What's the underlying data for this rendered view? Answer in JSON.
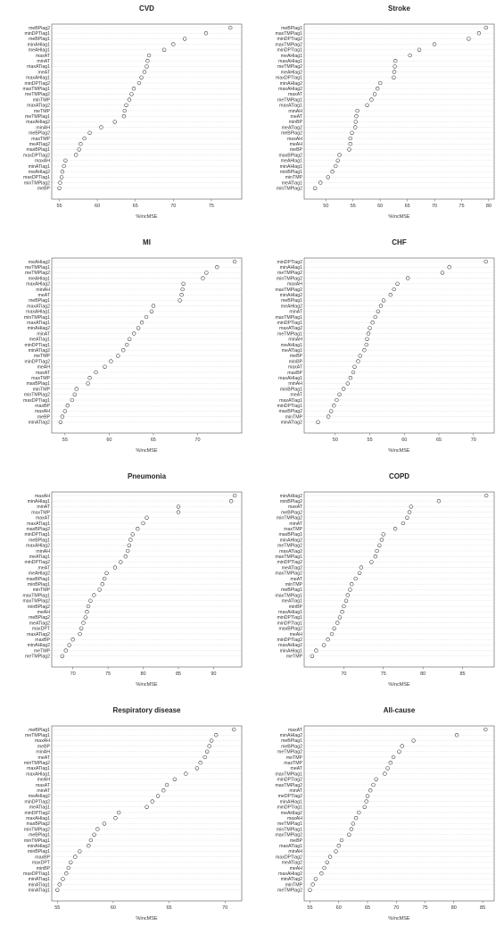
{
  "chart_data": [
    {
      "type": "scatter",
      "title": "CVD",
      "xlabel": "%IncMSE",
      "xlim": [
        54,
        79
      ],
      "xticks": [
        55,
        60,
        65,
        70,
        75
      ],
      "variables": [
        "meBPlag2",
        "minDPTlag1",
        "meBPlag1",
        "minAHlag1",
        "meAHlag1",
        "maxAT",
        "minAT",
        "maxATlag1",
        "meAT",
        "maxAHlag1",
        "minDPTlag2",
        "maxTMPlag1",
        "meTMPlag2",
        "minTMP",
        "maxATlag2",
        "meTMP",
        "meTMPlag1",
        "maxAHlag2",
        "minAH",
        "meBPlag2",
        "maxTMP",
        "meATlag2",
        "maxBPlag1",
        "maxDPTlag2",
        "maxAH",
        "minATlag1",
        "meAHlag2",
        "maxDPTlag1",
        "minTMPlag2",
        "meBP"
      ],
      "values": [
        77.5,
        74.3,
        71.5,
        70.0,
        68.8,
        66.8,
        66.6,
        66.5,
        66.2,
        65.8,
        65.5,
        64.8,
        64.5,
        64.2,
        63.8,
        63.6,
        63.5,
        62.3,
        60.5,
        59.0,
        58.3,
        57.8,
        57.6,
        57.2,
        55.8,
        55.6,
        55.4,
        55.3,
        55.1,
        55.0
      ]
    },
    {
      "type": "scatter",
      "title": "Stroke",
      "xlabel": "%IncMSE",
      "xlim": [
        46,
        81
      ],
      "xticks": [
        50,
        55,
        60,
        65,
        70,
        75,
        80
      ],
      "variables": [
        "meBPlag1",
        "maxTMPlag1",
        "minDPTlag2",
        "maxTMPlag2",
        "minDPTlag1",
        "meAHlag1",
        "maxAHlag1",
        "meTMPlag2",
        "meAHlag2",
        "maxDPTlag1",
        "minAHlag2",
        "maxAHlag2",
        "maxAT",
        "meTMPlag1",
        "maxATlag1",
        "minAH",
        "meAT",
        "minBP",
        "meATlag2",
        "meBPlag2",
        "maxAH",
        "meAH",
        "meBP",
        "maxBPlag2",
        "meAHlag1",
        "minAHlag1",
        "minBPlag1",
        "minTMP",
        "meATlag1",
        "minTMPlag2"
      ],
      "values": [
        79.5,
        78.2,
        76.3,
        70.0,
        67.2,
        65.5,
        62.8,
        62.7,
        62.6,
        62.5,
        60.0,
        59.5,
        59.0,
        58.4,
        57.6,
        55.8,
        55.6,
        55.5,
        55.4,
        54.8,
        54.5,
        54.5,
        54.3,
        52.5,
        52.2,
        51.8,
        51.2,
        50.4,
        49.0,
        48.0
      ]
    },
    {
      "type": "scatter",
      "title": "MI",
      "xlabel": "%IncMSE",
      "xlim": [
        53.5,
        75
      ],
      "xticks": [
        55,
        60,
        65,
        70
      ],
      "variables": [
        "meAHlag2",
        "meTMPlag1",
        "meTMPlag2",
        "meAHlag1",
        "maxAHlag2",
        "minAH",
        "meAT",
        "meBPlag1",
        "maxATlag2",
        "maxAHlag1",
        "minTMPlag1",
        "maxATlag1",
        "minAHlag2",
        "minAT",
        "meATlag1",
        "minDPTlag1",
        "minATlag2",
        "meTMP",
        "minDPTlag2",
        "meAH",
        "maxAT",
        "maxTMP",
        "maxBPlag1",
        "minTMP",
        "minTMPlag2",
        "maxDPTlag1",
        "maxBP",
        "maxAH",
        "meBP",
        "minATlag2"
      ],
      "values": [
        74.2,
        72.2,
        71.0,
        70.6,
        68.4,
        68.3,
        68.2,
        68.0,
        65.0,
        64.8,
        64.2,
        63.7,
        63.3,
        62.8,
        62.3,
        62.0,
        61.6,
        61.0,
        60.2,
        59.5,
        58.5,
        57.8,
        57.6,
        56.3,
        56.1,
        55.8,
        55.3,
        55.0,
        54.7,
        54.5
      ]
    },
    {
      "type": "scatter",
      "title": "CHF",
      "xlabel": "%IncMSE",
      "xlim": [
        45.5,
        73
      ],
      "xticks": [
        50,
        55,
        60,
        65,
        70
      ],
      "variables": [
        "minDPTlag2",
        "minAHlag1",
        "meTMPlag2",
        "minTMPlag2",
        "maxAH",
        "maxTMPlag2",
        "minAHlag2",
        "meBPlag1",
        "meAHlag2",
        "minAT",
        "maxTMPlag1",
        "minDPTlag1",
        "maxATlag2",
        "meTMPlag1",
        "minAH",
        "meAHlag1",
        "meATlag1",
        "meBP",
        "minBP",
        "maxAT",
        "maxBP",
        "maxAHlag1",
        "minAH",
        "minBPlag1",
        "meAT",
        "maxATlag1",
        "minDPTlag1",
        "maxBPlag2",
        "minTMP",
        "minATlag2"
      ],
      "values": [
        71.8,
        66.5,
        65.5,
        60.5,
        59.0,
        58.5,
        58.0,
        57.0,
        56.6,
        56.2,
        55.8,
        55.4,
        55.0,
        54.8,
        54.6,
        54.5,
        54.2,
        53.6,
        53.3,
        52.8,
        52.6,
        52.2,
        51.8,
        51.2,
        50.6,
        50.2,
        49.8,
        49.4,
        49.0,
        47.5
      ]
    },
    {
      "type": "scatter",
      "title": "Pneumonia",
      "xlabel": "%IncMSE",
      "xlim": [
        67,
        94
      ],
      "xticks": [
        70,
        75,
        80,
        85,
        90
      ],
      "variables": [
        "maxAH",
        "minAHlag1",
        "minAT",
        "maxTMP",
        "maxAT",
        "maxATlag1",
        "maxBPlag2",
        "minDPTlag1",
        "meBPlag1",
        "maxAHlag2",
        "minAH",
        "meATlag1",
        "minDPTlag2",
        "meAT",
        "meAHlag2",
        "maxBPlag1",
        "minBPlag1",
        "minTMP",
        "maxTMPlag1",
        "maxTMPlag2",
        "minBPlag2",
        "meAH",
        "meBPlag2",
        "meATlag2",
        "maxDPT",
        "maxATlag2",
        "maxBP",
        "minAHlag2",
        "meTMP",
        "meTMPlag2"
      ],
      "values": [
        93.0,
        92.5,
        85.0,
        85.0,
        80.5,
        80.0,
        79.2,
        78.5,
        78.2,
        78.0,
        77.8,
        77.5,
        76.8,
        76.0,
        74.8,
        74.5,
        74.2,
        73.8,
        73.0,
        72.5,
        72.2,
        72.0,
        71.8,
        71.5,
        71.2,
        71.0,
        70.0,
        69.5,
        69.0,
        68.5
      ]
    },
    {
      "type": "scatter",
      "title": "COPD",
      "xlabel": "%IncMSE",
      "xlim": [
        65,
        89
      ],
      "xticks": [
        70,
        75,
        80,
        85
      ],
      "variables": [
        "minAHlag2",
        "minBPlag2",
        "maxAT",
        "meBPlag2",
        "minTMPlag2",
        "minAT",
        "maxTMP",
        "maxBPlag1",
        "minAHlag2",
        "meTMPlag2",
        "maxATlag2",
        "maxTMPlag1",
        "minDPTlag2",
        "meATlag2",
        "maxTMPlag2",
        "meAT",
        "minTMP",
        "meBPlag1",
        "maxTMPlag1",
        "meATlag1",
        "minBP",
        "maxAHlag1",
        "minDPTlag1",
        "minDPTlag1",
        "maxBPlag2",
        "meAH",
        "minDPTlag2",
        "maxAHlag2",
        "minAHlag1",
        "meTMP"
      ],
      "values": [
        88.0,
        82.0,
        78.5,
        78.3,
        78.0,
        77.5,
        76.5,
        75.0,
        74.8,
        74.5,
        74.2,
        74.0,
        73.5,
        72.2,
        72.0,
        71.5,
        71.0,
        70.8,
        70.5,
        70.3,
        70.0,
        69.8,
        69.5,
        69.2,
        68.8,
        68.5,
        68.0,
        67.5,
        66.5,
        66.0
      ]
    },
    {
      "type": "scatter",
      "title": "Respiratory disease",
      "xlabel": "%IncMSE",
      "xlim": [
        54.5,
        71.5
      ],
      "xticks": [
        55,
        60,
        65,
        70
      ],
      "variables": [
        "meBPlag1",
        "meTMPlag1",
        "maxAH",
        "meBP",
        "minAH",
        "meAT",
        "minTMPlag2",
        "maxATlag1",
        "maxAHlag1",
        "meAH",
        "maxAT",
        "minAT",
        "meAHlag2",
        "minDPTlag2",
        "meATlag1",
        "minDPTlag2",
        "maxAHlag1",
        "maxBPlag2",
        "minTMPlag2",
        "meBPlag1",
        "minTMPlag1",
        "minAHlag2",
        "minBPlag1",
        "maxBP",
        "maxDPT",
        "minBP",
        "maxDPTlag1",
        "minATlag1",
        "minATlag1",
        "minATlag1"
      ],
      "values": [
        70.8,
        69.2,
        68.8,
        68.6,
        68.4,
        68.2,
        67.8,
        67.5,
        66.5,
        65.5,
        64.8,
        64.5,
        64.0,
        63.5,
        63.0,
        60.5,
        60.2,
        59.2,
        58.6,
        58.3,
        58.0,
        57.8,
        57.0,
        56.6,
        56.2,
        56.0,
        55.8,
        55.5,
        55.2,
        55.0
      ]
    },
    {
      "type": "scatter",
      "title": "All-cause",
      "xlabel": "%IncMSE",
      "xlim": [
        54,
        87
      ],
      "xticks": [
        55,
        60,
        65,
        70,
        75,
        80,
        85
      ],
      "variables": [
        "maxAT",
        "minAHlag2",
        "meBPlag1",
        "meBPlag2",
        "meTMPlag2",
        "meTMP",
        "maxTMP",
        "meAT",
        "maxTMPlag1",
        "minDPTlag2",
        "maxTMPlag2",
        "minAT",
        "meDPTlag2",
        "minAHlag1",
        "minDPTlag1",
        "meAHlag2",
        "maxAH",
        "meTMPlag1",
        "minTMPlag1",
        "maxTMPlag2",
        "meBP",
        "maxATlag1",
        "minAH",
        "maxDPTlag2",
        "meATlag2",
        "meAH",
        "maxAHlag2",
        "minATlag2",
        "minTMP",
        "meTMPlag2"
      ],
      "values": [
        85.5,
        80.5,
        73.0,
        71.0,
        70.5,
        69.5,
        69.0,
        68.5,
        68.0,
        66.5,
        66.0,
        65.5,
        65.0,
        64.8,
        64.5,
        63.5,
        63.0,
        62.5,
        62.2,
        61.8,
        60.5,
        60.0,
        59.5,
        58.5,
        58.0,
        57.5,
        57.0,
        56.0,
        55.5,
        55.0
      ]
    }
  ]
}
